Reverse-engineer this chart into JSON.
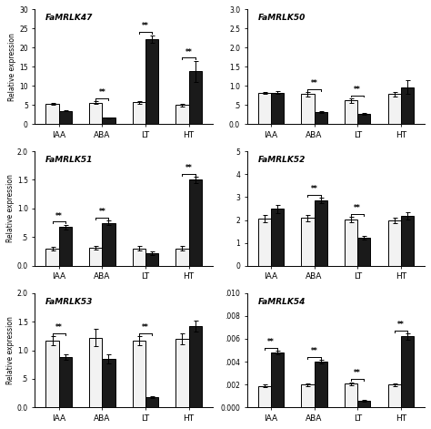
{
  "panels": [
    {
      "title": "FaMRLK47",
      "ylim": [
        0,
        30
      ],
      "yticks": [
        0,
        5,
        10,
        15,
        20,
        25,
        30
      ],
      "yticklabels": [
        "0",
        "5",
        "10",
        "15",
        "20",
        "25",
        "30"
      ],
      "groups": [
        "IAA",
        "ABA",
        "LT",
        "HT"
      ],
      "white_vals": [
        5.3,
        5.6,
        5.7,
        5.0
      ],
      "black_vals": [
        3.5,
        1.6,
        22.3,
        13.8
      ],
      "white_err": [
        0.25,
        0.3,
        0.4,
        0.35
      ],
      "black_err": [
        0.2,
        0.15,
        1.0,
        2.8
      ],
      "sig": [
        false,
        true,
        true,
        true
      ]
    },
    {
      "title": "FaMRLK50",
      "ylim": [
        0,
        3.0
      ],
      "yticks": [
        0.0,
        0.5,
        1.0,
        1.5,
        2.0,
        2.5,
        3.0
      ],
      "yticklabels": [
        "0.0",
        ".5",
        "1.0",
        "1.5",
        "2.0",
        "2.5",
        "3.0"
      ],
      "groups": [
        "IAA",
        "ABA",
        "LT",
        "HT"
      ],
      "white_vals": [
        0.82,
        0.78,
        0.62,
        0.78
      ],
      "black_vals": [
        0.82,
        0.32,
        0.27,
        0.96
      ],
      "white_err": [
        0.03,
        0.05,
        0.06,
        0.06
      ],
      "black_err": [
        0.04,
        0.03,
        0.03,
        0.18
      ],
      "sig": [
        false,
        true,
        true,
        false
      ]
    },
    {
      "title": "FaMRLK51",
      "ylim": [
        0,
        2.0
      ],
      "yticks": [
        0.0,
        0.5,
        1.0,
        1.5,
        2.0
      ],
      "yticklabels": [
        "0.0",
        ".5",
        "1.0",
        "1.5",
        "2.0"
      ],
      "groups": [
        "IAA",
        "ABA",
        "LT",
        "HT"
      ],
      "white_vals": [
        0.3,
        0.32,
        0.3,
        0.3
      ],
      "black_vals": [
        0.68,
        0.75,
        0.22,
        1.5
      ],
      "white_err": [
        0.03,
        0.03,
        0.04,
        0.04
      ],
      "black_err": [
        0.04,
        0.04,
        0.03,
        0.05
      ],
      "sig": [
        true,
        true,
        false,
        true
      ]
    },
    {
      "title": "FaMRLK52",
      "ylim": [
        0,
        5.0
      ],
      "yticks": [
        0,
        1,
        2,
        3,
        4,
        5
      ],
      "yticklabels": [
        "0",
        "1",
        "2",
        "3",
        "4",
        "5"
      ],
      "groups": [
        "IAA",
        "ABA",
        "LT",
        "HT"
      ],
      "white_vals": [
        2.05,
        2.08,
        2.02,
        1.97
      ],
      "black_vals": [
        2.48,
        2.85,
        1.22,
        2.18
      ],
      "white_err": [
        0.15,
        0.15,
        0.12,
        0.12
      ],
      "black_err": [
        0.18,
        0.12,
        0.08,
        0.15
      ],
      "sig": [
        false,
        true,
        true,
        false
      ]
    },
    {
      "title": "FaMRLK53",
      "ylim": [
        0,
        2.0
      ],
      "yticks": [
        0.0,
        0.5,
        1.0,
        1.5,
        2.0
      ],
      "yticklabels": [
        "0.0",
        ".5",
        "1.0",
        "1.5",
        "2.0"
      ],
      "groups": [
        "IAA",
        "ABA",
        "LT",
        "HT"
      ],
      "white_vals": [
        1.17,
        1.22,
        1.17,
        1.2
      ],
      "black_vals": [
        0.88,
        0.85,
        0.18,
        1.42
      ],
      "white_err": [
        0.08,
        0.15,
        0.08,
        0.1
      ],
      "black_err": [
        0.05,
        0.08,
        0.02,
        0.1
      ],
      "sig": [
        true,
        false,
        true,
        false
      ]
    },
    {
      "title": "FaMRLK54",
      "ylim": [
        0,
        0.01
      ],
      "yticks": [
        0.0,
        0.002,
        0.004,
        0.006,
        0.008,
        0.01
      ],
      "yticklabels": [
        "0.000",
        ".002",
        ".004",
        ".006",
        ".008",
        ".010"
      ],
      "groups": [
        "IAA",
        "ABA",
        "LT",
        "HT"
      ],
      "white_vals": [
        0.0019,
        0.002,
        0.0021,
        0.002
      ],
      "black_vals": [
        0.0048,
        0.004,
        0.0006,
        0.0062
      ],
      "white_err": [
        0.0001,
        0.00012,
        0.00012,
        0.00012
      ],
      "black_err": [
        0.00015,
        0.00015,
        5e-05,
        0.00025
      ],
      "sig": [
        true,
        true,
        true,
        true
      ]
    }
  ],
  "ylabel": "Relative expression",
  "bar_width": 0.3,
  "white_color": "#f2f2f2",
  "black_color": "#1a1a1a",
  "edgecolor": "#000000"
}
